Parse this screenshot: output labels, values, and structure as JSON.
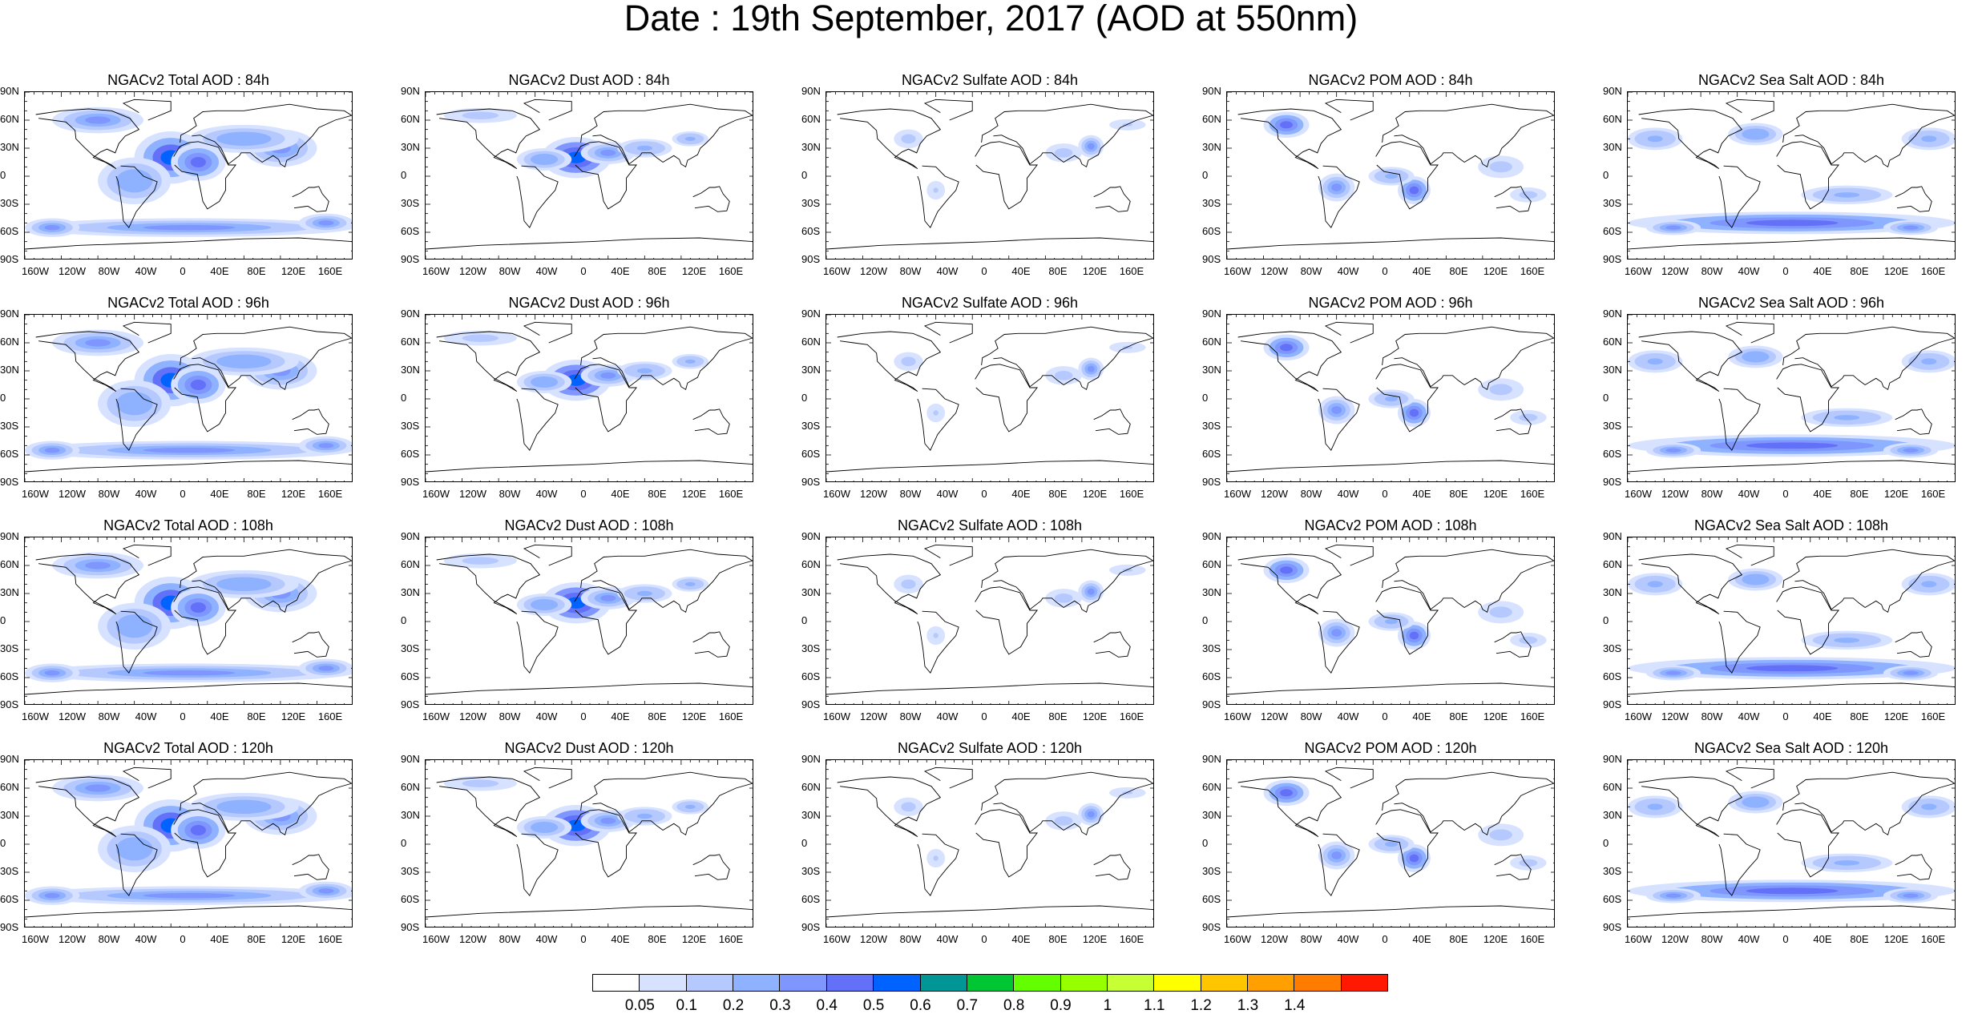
{
  "title": "Date : 19th September, 2017 (AOD at 550nm)",
  "lat_labels": [
    "90N",
    "60N",
    "30N",
    "0",
    "30S",
    "60S",
    "90S"
  ],
  "lon_labels": [
    "160W",
    "120W",
    "80W",
    "40W",
    "0",
    "40E",
    "80E",
    "120E",
    "160E"
  ],
  "panels": [
    {
      "title": "NGACv2 Total AOD : 84h",
      "species": "total",
      "forecast_hour": 84
    },
    {
      "title": "NGACv2 Dust AOD : 84h",
      "species": "dust",
      "forecast_hour": 84
    },
    {
      "title": "NGACv2 Sulfate AOD : 84h",
      "species": "sulfate",
      "forecast_hour": 84
    },
    {
      "title": "NGACv2 POM AOD : 84h",
      "species": "pom",
      "forecast_hour": 84
    },
    {
      "title": "NGACv2 Sea Salt AOD : 84h",
      "species": "seasalt",
      "forecast_hour": 84
    },
    {
      "title": "NGACv2 Total AOD : 96h",
      "species": "total",
      "forecast_hour": 96
    },
    {
      "title": "NGACv2 Dust AOD : 96h",
      "species": "dust",
      "forecast_hour": 96
    },
    {
      "title": "NGACv2 Sulfate AOD : 96h",
      "species": "sulfate",
      "forecast_hour": 96
    },
    {
      "title": "NGACv2 POM AOD : 96h",
      "species": "pom",
      "forecast_hour": 96
    },
    {
      "title": "NGACv2 Sea Salt AOD : 96h",
      "species": "seasalt",
      "forecast_hour": 96
    },
    {
      "title": "NGACv2 Total AOD : 108h",
      "species": "total",
      "forecast_hour": 108
    },
    {
      "title": "NGACv2 Dust AOD : 108h",
      "species": "dust",
      "forecast_hour": 108
    },
    {
      "title": "NGACv2 Sulfate AOD : 108h",
      "species": "sulfate",
      "forecast_hour": 108
    },
    {
      "title": "NGACv2 POM AOD : 108h",
      "species": "pom",
      "forecast_hour": 108
    },
    {
      "title": "NGACv2 Sea Salt AOD : 108h",
      "species": "seasalt",
      "forecast_hour": 108
    },
    {
      "title": "NGACv2 Total AOD : 120h",
      "species": "total",
      "forecast_hour": 120
    },
    {
      "title": "NGACv2 Dust AOD : 120h",
      "species": "dust",
      "forecast_hour": 120
    },
    {
      "title": "NGACv2 Sulfate AOD : 120h",
      "species": "sulfate",
      "forecast_hour": 120
    },
    {
      "title": "NGACv2 POM AOD : 120h",
      "species": "pom",
      "forecast_hour": 120
    },
    {
      "title": "NGACv2 Sea Salt  AOD : 120h",
      "species": "seasalt",
      "forecast_hour": 120
    }
  ],
  "colorbar": {
    "labels": [
      "0.05",
      "0.1",
      "0.2",
      "0.3",
      "0.4",
      "0.5",
      "0.6",
      "0.7",
      "0.8",
      "0.9",
      "1",
      "1.1",
      "1.2",
      "1.3",
      "1.4"
    ],
    "colors": [
      "#ffffff",
      "#d6e2ff",
      "#b5c9ff",
      "#8eb2ff",
      "#7f96ff",
      "#6370f8",
      "#0063ff",
      "#009696",
      "#00c633",
      "#63ff00",
      "#96ff00",
      "#c6ff33",
      "#ffff00",
      "#ffc600",
      "#ffa000",
      "#ff7c00",
      "#ff1900"
    ]
  }
}
